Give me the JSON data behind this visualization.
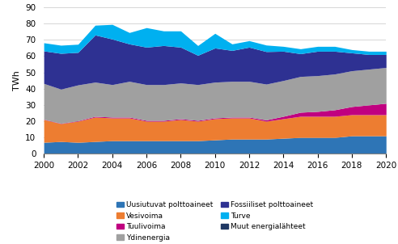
{
  "years": [
    2000,
    2001,
    2002,
    2003,
    2004,
    2005,
    2006,
    2007,
    2008,
    2009,
    2010,
    2011,
    2012,
    2013,
    2014,
    2015,
    2016,
    2017,
    2018,
    2019,
    2020
  ],
  "series": {
    "Uusiutuvat polttoaineet": [
      7,
      7.5,
      7,
      7.5,
      8,
      8,
      8,
      8,
      8,
      8,
      8.5,
      9,
      9,
      9,
      9.5,
      10,
      10,
      10,
      11,
      11,
      11
    ],
    "Vesivoima": [
      14,
      11,
      13,
      15,
      14,
      14,
      12,
      12,
      13,
      12,
      13,
      13,
      13,
      11,
      12,
      13,
      13,
      13,
      13,
      13,
      13
    ],
    "Tuulivoima": [
      0.2,
      0.2,
      0.3,
      0.5,
      0.5,
      0.5,
      0.5,
      0.5,
      0.5,
      0.5,
      0.5,
      0.5,
      0.5,
      0.8,
      1.5,
      2.5,
      3,
      4,
      5,
      6,
      7
    ],
    "Ydinenergia": [
      22,
      21,
      22,
      21,
      20,
      22,
      22,
      22,
      22,
      22,
      22,
      22,
      22,
      22,
      22,
      22,
      22,
      22,
      22,
      22,
      22
    ],
    "Fossiiliset polttoaineet": [
      20,
      22,
      20,
      29,
      28,
      23,
      23,
      24,
      22,
      18,
      21,
      19,
      21,
      20,
      18,
      14,
      15,
      14,
      11,
      9,
      8
    ],
    "Turve": [
      5,
      5,
      5,
      6,
      9,
      7,
      12,
      9,
      10,
      6,
      9,
      4,
      4,
      4,
      3,
      3,
      3,
      3,
      2,
      2,
      2
    ],
    "Muut energialähteet": [
      0,
      0,
      0,
      0,
      0,
      0,
      0,
      0,
      0,
      0,
      0,
      0,
      0,
      0,
      0,
      0,
      0,
      0,
      0,
      0,
      0
    ]
  },
  "colors": {
    "Uusiutuvat polttoaineet": "#2e75b6",
    "Vesivoima": "#ed7d31",
    "Tuulivoima": "#c00080",
    "Ydinenergia": "#a0a0a0",
    "Fossiiliset polttoaineet": "#2e3192",
    "Turve": "#00b0f0",
    "Muut energialähteet": "#1f3864"
  },
  "ylabel": "TWh",
  "ylim": [
    0,
    90
  ],
  "yticks": [
    0,
    10,
    20,
    30,
    40,
    50,
    60,
    70,
    80,
    90
  ],
  "background_color": "#ffffff",
  "stack_order": [
    "Uusiutuvat polttoaineet",
    "Vesivoima",
    "Tuulivoima",
    "Ydinenergia",
    "Fossiiliset polttoaineet",
    "Turve",
    "Muut energialähteet"
  ],
  "legend_left": [
    "Uusiutuvat polttoaineet",
    "Tuulivoima",
    "Fossiiliset polttoaineet",
    "Muut energialähteet"
  ],
  "legend_right": [
    "Vesivoima",
    "Ydinenergia",
    "Turve"
  ]
}
